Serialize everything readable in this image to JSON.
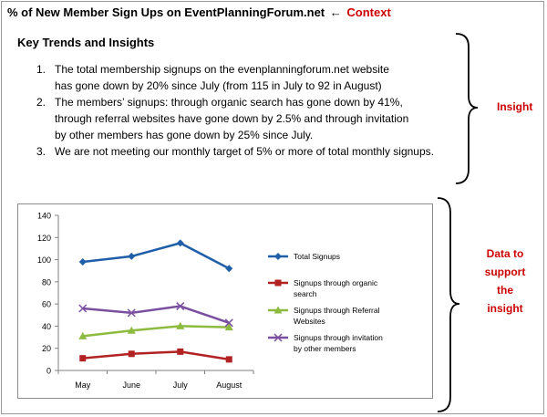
{
  "header": {
    "title": "% of New Member Sign Ups on EventPlanningForum.net",
    "arrow": "←",
    "context_label": "Context"
  },
  "insights": {
    "title": "Key Trends and Insights",
    "items": [
      {
        "num": "1.",
        "lines": [
          "The total membership signups on the evenplanningforum.net website",
          "has gone down by 20% since July (from 115 in July to 92 in August)"
        ]
      },
      {
        "num": "2.",
        "lines": [
          "The members’ signups: through organic search has gone down by 41%,",
          "through referral websites have gone down by 2.5% and through invitation",
          "by other members has gone down by 25% since July."
        ]
      },
      {
        "num": "3.",
        "lines": [
          "We are not meeting our monthly target of 5% or more of total monthly signups."
        ]
      }
    ]
  },
  "side_labels": {
    "insight": "Insight",
    "data_support": [
      "Data to",
      "support",
      "the",
      "insight"
    ]
  },
  "chart_data": {
    "type": "line",
    "categories": [
      "May",
      "June",
      "July",
      "August"
    ],
    "ylim": [
      0,
      140
    ],
    "yticks": [
      0,
      20,
      40,
      60,
      80,
      100,
      120,
      140
    ],
    "grid": false,
    "legend_position": "right",
    "series": [
      {
        "name": "Total Signups",
        "values": [
          98,
          103,
          115,
          92
        ],
        "color": "#1f5ea8",
        "marker": "diamond"
      },
      {
        "name": "Signups through organic search",
        "legend_lines": [
          "Signups through organic",
          "search"
        ],
        "values": [
          11,
          15,
          17,
          10
        ],
        "color": "#b22222",
        "marker": "square"
      },
      {
        "name": "Signups through Referral Websites",
        "legend_lines": [
          "Signups through Referral",
          "Websites"
        ],
        "values": [
          31,
          36,
          40,
          39
        ],
        "color": "#8cbb3f",
        "marker": "triangle"
      },
      {
        "name": "Signups through invitation by other members",
        "legend_lines": [
          "Signups through invitation",
          "by other members"
        ],
        "values": [
          56,
          52,
          58,
          43
        ],
        "color": "#7a4fa0",
        "marker": "x"
      }
    ]
  }
}
